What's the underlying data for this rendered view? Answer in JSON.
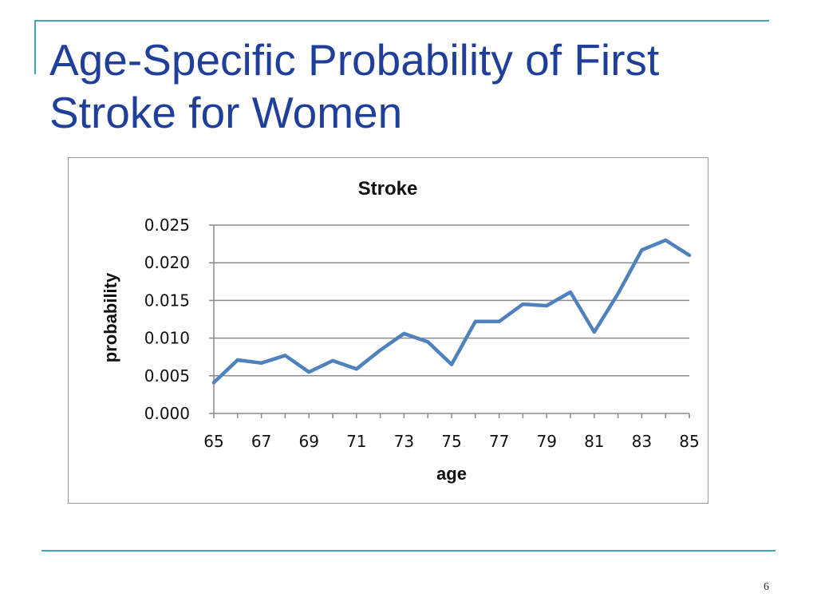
{
  "slide": {
    "title": "Age-Specific Probability of First Stroke for Women",
    "page_number": "6"
  },
  "colors": {
    "accent_rule": "#3aa6b9",
    "title": "#1f3f9a",
    "series_line": "#4f81bd"
  },
  "chart_data": {
    "type": "line",
    "title": "Stroke",
    "xlabel": "age",
    "ylabel": "probability",
    "x": [
      65,
      66,
      67,
      68,
      69,
      70,
      71,
      72,
      73,
      74,
      75,
      76,
      77,
      78,
      79,
      80,
      81,
      82,
      83,
      84,
      85
    ],
    "series": [
      {
        "values": [
          0.0041,
          0.0071,
          0.0067,
          0.0077,
          0.0055,
          0.007,
          0.0059,
          0.0084,
          0.0106,
          0.0095,
          0.0065,
          0.0122,
          0.0122,
          0.0145,
          0.0143,
          0.0161,
          0.0108,
          0.0159,
          0.0217,
          0.023,
          0.021
        ]
      }
    ],
    "xlim": [
      65,
      85
    ],
    "ylim": [
      0,
      0.025
    ],
    "x_ticks": [
      "65",
      "67",
      "69",
      "71",
      "73",
      "75",
      "77",
      "79",
      "81",
      "83",
      "85"
    ],
    "y_ticks": [
      "0.000",
      "0.005",
      "0.010",
      "0.015",
      "0.020",
      "0.025"
    ],
    "grid": true,
    "legend": "none"
  }
}
